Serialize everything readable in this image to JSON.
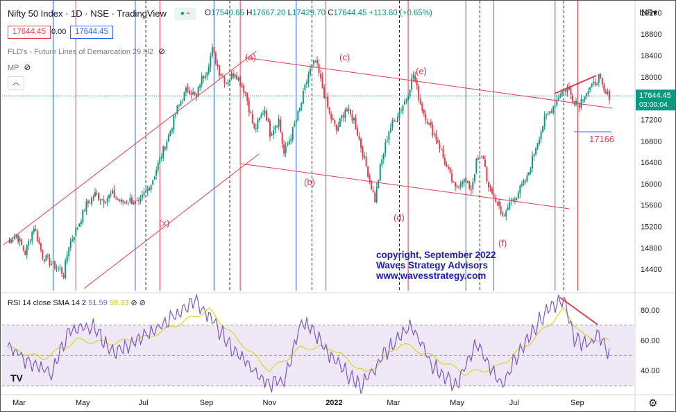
{
  "header": {
    "symbol": "Nifty 50 Index",
    "interval": "1D",
    "exchange": "NSE",
    "source": "TradingView",
    "ohlc": {
      "open_label": "O",
      "open": "17540.65",
      "high_label": "H",
      "high": "17667.20",
      "low_label": "L",
      "low": "17429.70",
      "close_label": "C",
      "close": "17644.45",
      "change": "+113.60 (+0.65%)"
    },
    "sell_price": "17644.45",
    "spread": "0.00",
    "buy_price": "17644.45",
    "currency": "INR"
  },
  "indicators": [
    {
      "label": "FLD's - Future Lines of Demarcation 29 hl2"
    },
    {
      "label": "MP"
    }
  ],
  "rsi_legend": {
    "label": "RSI 14 close SMA 14 2",
    "rsi": "51.59",
    "sma": "59.33"
  },
  "icons": {
    "live": "live-dot-icon",
    "wave": "wave-icon",
    "hide": "eye-off-icon",
    "collapse": "chevron-up-icon",
    "settings": "gear-icon",
    "logo": "tradingview-logo-icon"
  },
  "colors": {
    "up": "#089981",
    "down": "#f23645",
    "blue_cycle": "#2962ff",
    "red_cycle": "#f23645",
    "annotation": "#e6394a",
    "copyright": "#1a1acc",
    "rsi": "#7e57c2",
    "rsi_sma": "#d4d400",
    "rsi_band": "#ede7f6"
  },
  "chart_data": {
    "type": "candlestick",
    "price_axis": {
      "min": 14000,
      "max": 19400,
      "ticks": [
        19200,
        18800,
        18400,
        18000,
        17600,
        17200,
        16800,
        16400,
        16000,
        15600,
        15200,
        14800,
        14400
      ]
    },
    "time_axis": {
      "labels": [
        "Mar",
        "May",
        "Jul",
        "Sep",
        "Nov",
        "2022",
        "Mar",
        "May",
        "Jul",
        "Sep"
      ]
    },
    "last_price": "17644.45",
    "countdown": "03:00:04",
    "wave_labels": [
      "(a)",
      "(b)",
      "(c)",
      "(d)",
      "(e)",
      "(f)",
      "(x)"
    ],
    "level_label": "17166",
    "copyright": [
      "copyright, September 2022",
      "Waves Strategy Advisors",
      "www.wavesstrategy.com"
    ],
    "close_path": [
      [
        0,
        14900
      ],
      [
        5,
        15050
      ],
      [
        10,
        14700
      ],
      [
        15,
        15200
      ],
      [
        20,
        14650
      ],
      [
        25,
        14500
      ],
      [
        30,
        14400
      ],
      [
        32,
        14300
      ],
      [
        35,
        14850
      ],
      [
        40,
        15200
      ],
      [
        45,
        15600
      ],
      [
        50,
        15800
      ],
      [
        55,
        15700
      ],
      [
        60,
        15800
      ],
      [
        65,
        15650
      ],
      [
        70,
        15700
      ],
      [
        75,
        15600
      ],
      [
        78,
        15800
      ],
      [
        82,
        16000
      ],
      [
        87,
        16450
      ],
      [
        92,
        16900
      ],
      [
        97,
        17400
      ],
      [
        103,
        17800
      ],
      [
        108,
        17600
      ],
      [
        110,
        17900
      ],
      [
        114,
        18150
      ],
      [
        117,
        18500
      ],
      [
        121,
        18100
      ],
      [
        125,
        17900
      ],
      [
        130,
        18100
      ],
      [
        136,
        17700
      ],
      [
        141,
        17000
      ],
      [
        147,
        17400
      ],
      [
        150,
        16950
      ],
      [
        155,
        17200
      ],
      [
        158,
        16550
      ],
      [
        162,
        16900
      ],
      [
        167,
        17400
      ],
      [
        172,
        18050
      ],
      [
        176,
        18300
      ],
      [
        180,
        17800
      ],
      [
        184,
        17300
      ],
      [
        188,
        17000
      ],
      [
        193,
        17400
      ],
      [
        198,
        17200
      ],
      [
        202,
        16700
      ],
      [
        206,
        16200
      ],
      [
        210,
        15700
      ],
      [
        213,
        16300
      ],
      [
        218,
        17000
      ],
      [
        223,
        17300
      ],
      [
        228,
        17600
      ],
      [
        232,
        18050
      ],
      [
        236,
        17500
      ],
      [
        241,
        17100
      ],
      [
        246,
        16800
      ],
      [
        251,
        16300
      ],
      [
        256,
        15900
      ],
      [
        260,
        16100
      ],
      [
        265,
        15900
      ],
      [
        268,
        16400
      ],
      [
        272,
        16500
      ],
      [
        275,
        15900
      ],
      [
        280,
        15650
      ],
      [
        284,
        15350
      ],
      [
        287,
        15650
      ],
      [
        291,
        15800
      ],
      [
        297,
        16100
      ],
      [
        302,
        16700
      ],
      [
        307,
        17200
      ],
      [
        312,
        17450
      ],
      [
        316,
        17700
      ],
      [
        320,
        17800
      ],
      [
        323,
        17600
      ],
      [
        327,
        17500
      ],
      [
        330,
        17700
      ],
      [
        334,
        17800
      ],
      [
        338,
        18000
      ],
      [
        341,
        17700
      ],
      [
        344,
        17644
      ]
    ],
    "rsi_axis": {
      "min": 25,
      "max": 90,
      "ticks": [
        80.0,
        60.0,
        40.0
      ],
      "band": [
        30,
        70
      ],
      "mid": 50
    },
    "rsi_path": [
      [
        0,
        58
      ],
      [
        12,
        45
      ],
      [
        25,
        38
      ],
      [
        35,
        65
      ],
      [
        48,
        70
      ],
      [
        60,
        52
      ],
      [
        72,
        58
      ],
      [
        85,
        68
      ],
      [
        100,
        80
      ],
      [
        108,
        86
      ],
      [
        116,
        75
      ],
      [
        128,
        55
      ],
      [
        140,
        40
      ],
      [
        150,
        30
      ],
      [
        158,
        34
      ],
      [
        168,
        72
      ],
      [
        175,
        65
      ],
      [
        188,
        45
      ],
      [
        202,
        30
      ],
      [
        215,
        50
      ],
      [
        230,
        70
      ],
      [
        242,
        45
      ],
      [
        256,
        30
      ],
      [
        268,
        58
      ],
      [
        282,
        30
      ],
      [
        295,
        58
      ],
      [
        310,
        82
      ],
      [
        318,
        86
      ],
      [
        324,
        60
      ],
      [
        334,
        58
      ],
      [
        338,
        65
      ],
      [
        344,
        51.6
      ]
    ],
    "rsi_sma_path": [
      [
        0,
        55
      ],
      [
        20,
        48
      ],
      [
        40,
        60
      ],
      [
        60,
        58
      ],
      [
        80,
        62
      ],
      [
        100,
        72
      ],
      [
        115,
        80
      ],
      [
        130,
        62
      ],
      [
        150,
        40
      ],
      [
        168,
        55
      ],
      [
        185,
        55
      ],
      [
        205,
        38
      ],
      [
        225,
        58
      ],
      [
        245,
        48
      ],
      [
        262,
        38
      ],
      [
        280,
        42
      ],
      [
        300,
        60
      ],
      [
        318,
        80
      ],
      [
        330,
        62
      ],
      [
        344,
        59.3
      ]
    ]
  }
}
